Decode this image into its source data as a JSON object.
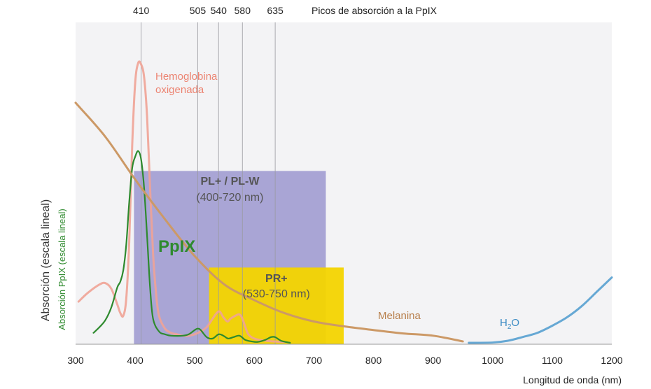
{
  "chart_data": {
    "type": "line",
    "xlabel": "Longitud de onda (nm)",
    "ylabel": "Absorción (escala lineal)",
    "ylabel_secondary": "Absorción PpIX (escala lineal)",
    "xlim": [
      300,
      1200
    ],
    "ylim": [
      0,
      1
    ],
    "grid": false,
    "x_ticks": [
      300,
      400,
      500,
      600,
      700,
      800,
      900,
      1000,
      1100,
      1200
    ],
    "peaks": {
      "title": "Picos de absorción a la PpIX",
      "values": [
        410,
        505,
        540,
        580,
        635
      ]
    },
    "bands": [
      {
        "name": "PL+ / PL-W",
        "range_label": "(400-720 nm)",
        "x_start": 398,
        "x_end": 720,
        "y_top": 0.61,
        "color": "#9b96cf"
      },
      {
        "name": "PR+",
        "range_label": "(530-750 nm)",
        "x_start": 524,
        "x_end": 750,
        "y_top": 0.27,
        "color": "#f3d400"
      }
    ],
    "series": [
      {
        "name": "Hemoglobina oxigenada",
        "label_line2": "oxigenada",
        "label_line1": "Hemoglobina",
        "color": "#f0a396",
        "points": [
          [
            305,
            0.15
          ],
          [
            320,
            0.18
          ],
          [
            340,
            0.21
          ],
          [
            350,
            0.215
          ],
          [
            360,
            0.195
          ],
          [
            370,
            0.14
          ],
          [
            375,
            0.11
          ],
          [
            380,
            0.1
          ],
          [
            385,
            0.16
          ],
          [
            390,
            0.36
          ],
          [
            395,
            0.7
          ],
          [
            400,
            0.92
          ],
          [
            405,
            0.99
          ],
          [
            410,
            0.985
          ],
          [
            415,
            0.94
          ],
          [
            420,
            0.8
          ],
          [
            425,
            0.55
          ],
          [
            430,
            0.32
          ],
          [
            435,
            0.18
          ],
          [
            440,
            0.1
          ],
          [
            450,
            0.055
          ],
          [
            460,
            0.04
          ],
          [
            470,
            0.035
          ],
          [
            480,
            0.03
          ],
          [
            490,
            0.03
          ],
          [
            500,
            0.035
          ],
          [
            510,
            0.045
          ],
          [
            520,
            0.06
          ],
          [
            530,
            0.09
          ],
          [
            537,
            0.11
          ],
          [
            542,
            0.115
          ],
          [
            548,
            0.095
          ],
          [
            555,
            0.08
          ],
          [
            560,
            0.09
          ],
          [
            568,
            0.1
          ],
          [
            575,
            0.105
          ],
          [
            580,
            0.09
          ],
          [
            585,
            0.06
          ],
          [
            590,
            0.035
          ],
          [
            600,
            0.02
          ],
          [
            620,
            0.012
          ],
          [
            650,
            0.008
          ]
        ]
      },
      {
        "name": "PpIX",
        "color": "#2e8a2e",
        "points": [
          [
            330,
            0.04
          ],
          [
            340,
            0.06
          ],
          [
            350,
            0.085
          ],
          [
            360,
            0.13
          ],
          [
            370,
            0.2
          ],
          [
            375,
            0.22
          ],
          [
            380,
            0.26
          ],
          [
            385,
            0.35
          ],
          [
            390,
            0.5
          ],
          [
            395,
            0.62
          ],
          [
            400,
            0.66
          ],
          [
            405,
            0.68
          ],
          [
            410,
            0.65
          ],
          [
            415,
            0.55
          ],
          [
            420,
            0.38
          ],
          [
            425,
            0.2
          ],
          [
            430,
            0.09
          ],
          [
            440,
            0.045
          ],
          [
            450,
            0.035
          ],
          [
            460,
            0.03
          ],
          [
            480,
            0.03
          ],
          [
            490,
            0.035
          ],
          [
            500,
            0.05
          ],
          [
            505,
            0.055
          ],
          [
            510,
            0.05
          ],
          [
            520,
            0.025
          ],
          [
            530,
            0.02
          ],
          [
            540,
            0.035
          ],
          [
            548,
            0.03
          ],
          [
            556,
            0.02
          ],
          [
            565,
            0.025
          ],
          [
            575,
            0.03
          ],
          [
            585,
            0.015
          ],
          [
            595,
            0.01
          ],
          [
            605,
            0.008
          ],
          [
            618,
            0.015
          ],
          [
            628,
            0.025
          ],
          [
            635,
            0.025
          ],
          [
            645,
            0.012
          ],
          [
            660,
            0.005
          ]
        ]
      },
      {
        "name": "Melanina",
        "color": "#cc9966",
        "points": [
          [
            300,
            0.85
          ],
          [
            350,
            0.73
          ],
          [
            400,
            0.58
          ],
          [
            450,
            0.44
          ],
          [
            500,
            0.31
          ],
          [
            550,
            0.21
          ],
          [
            600,
            0.155
          ],
          [
            650,
            0.11
          ],
          [
            700,
            0.08
          ],
          [
            750,
            0.063
          ],
          [
            800,
            0.05
          ],
          [
            850,
            0.038
          ],
          [
            900,
            0.03
          ],
          [
            950,
            0.01
          ]
        ]
      },
      {
        "name": "H₂O",
        "color": "#66a8d4",
        "points": [
          [
            960,
            0.005
          ],
          [
            1000,
            0.006
          ],
          [
            1025,
            0.012
          ],
          [
            1050,
            0.025
          ],
          [
            1075,
            0.04
          ],
          [
            1100,
            0.065
          ],
          [
            1125,
            0.095
          ],
          [
            1150,
            0.135
          ],
          [
            1175,
            0.185
          ],
          [
            1200,
            0.235
          ]
        ]
      }
    ],
    "annotations": {
      "ppix_label": "PpIX",
      "melanina_label": "Melanina",
      "h2o_label_main": "H",
      "h2o_label_sub": "2",
      "h2o_label_end": "O"
    }
  }
}
